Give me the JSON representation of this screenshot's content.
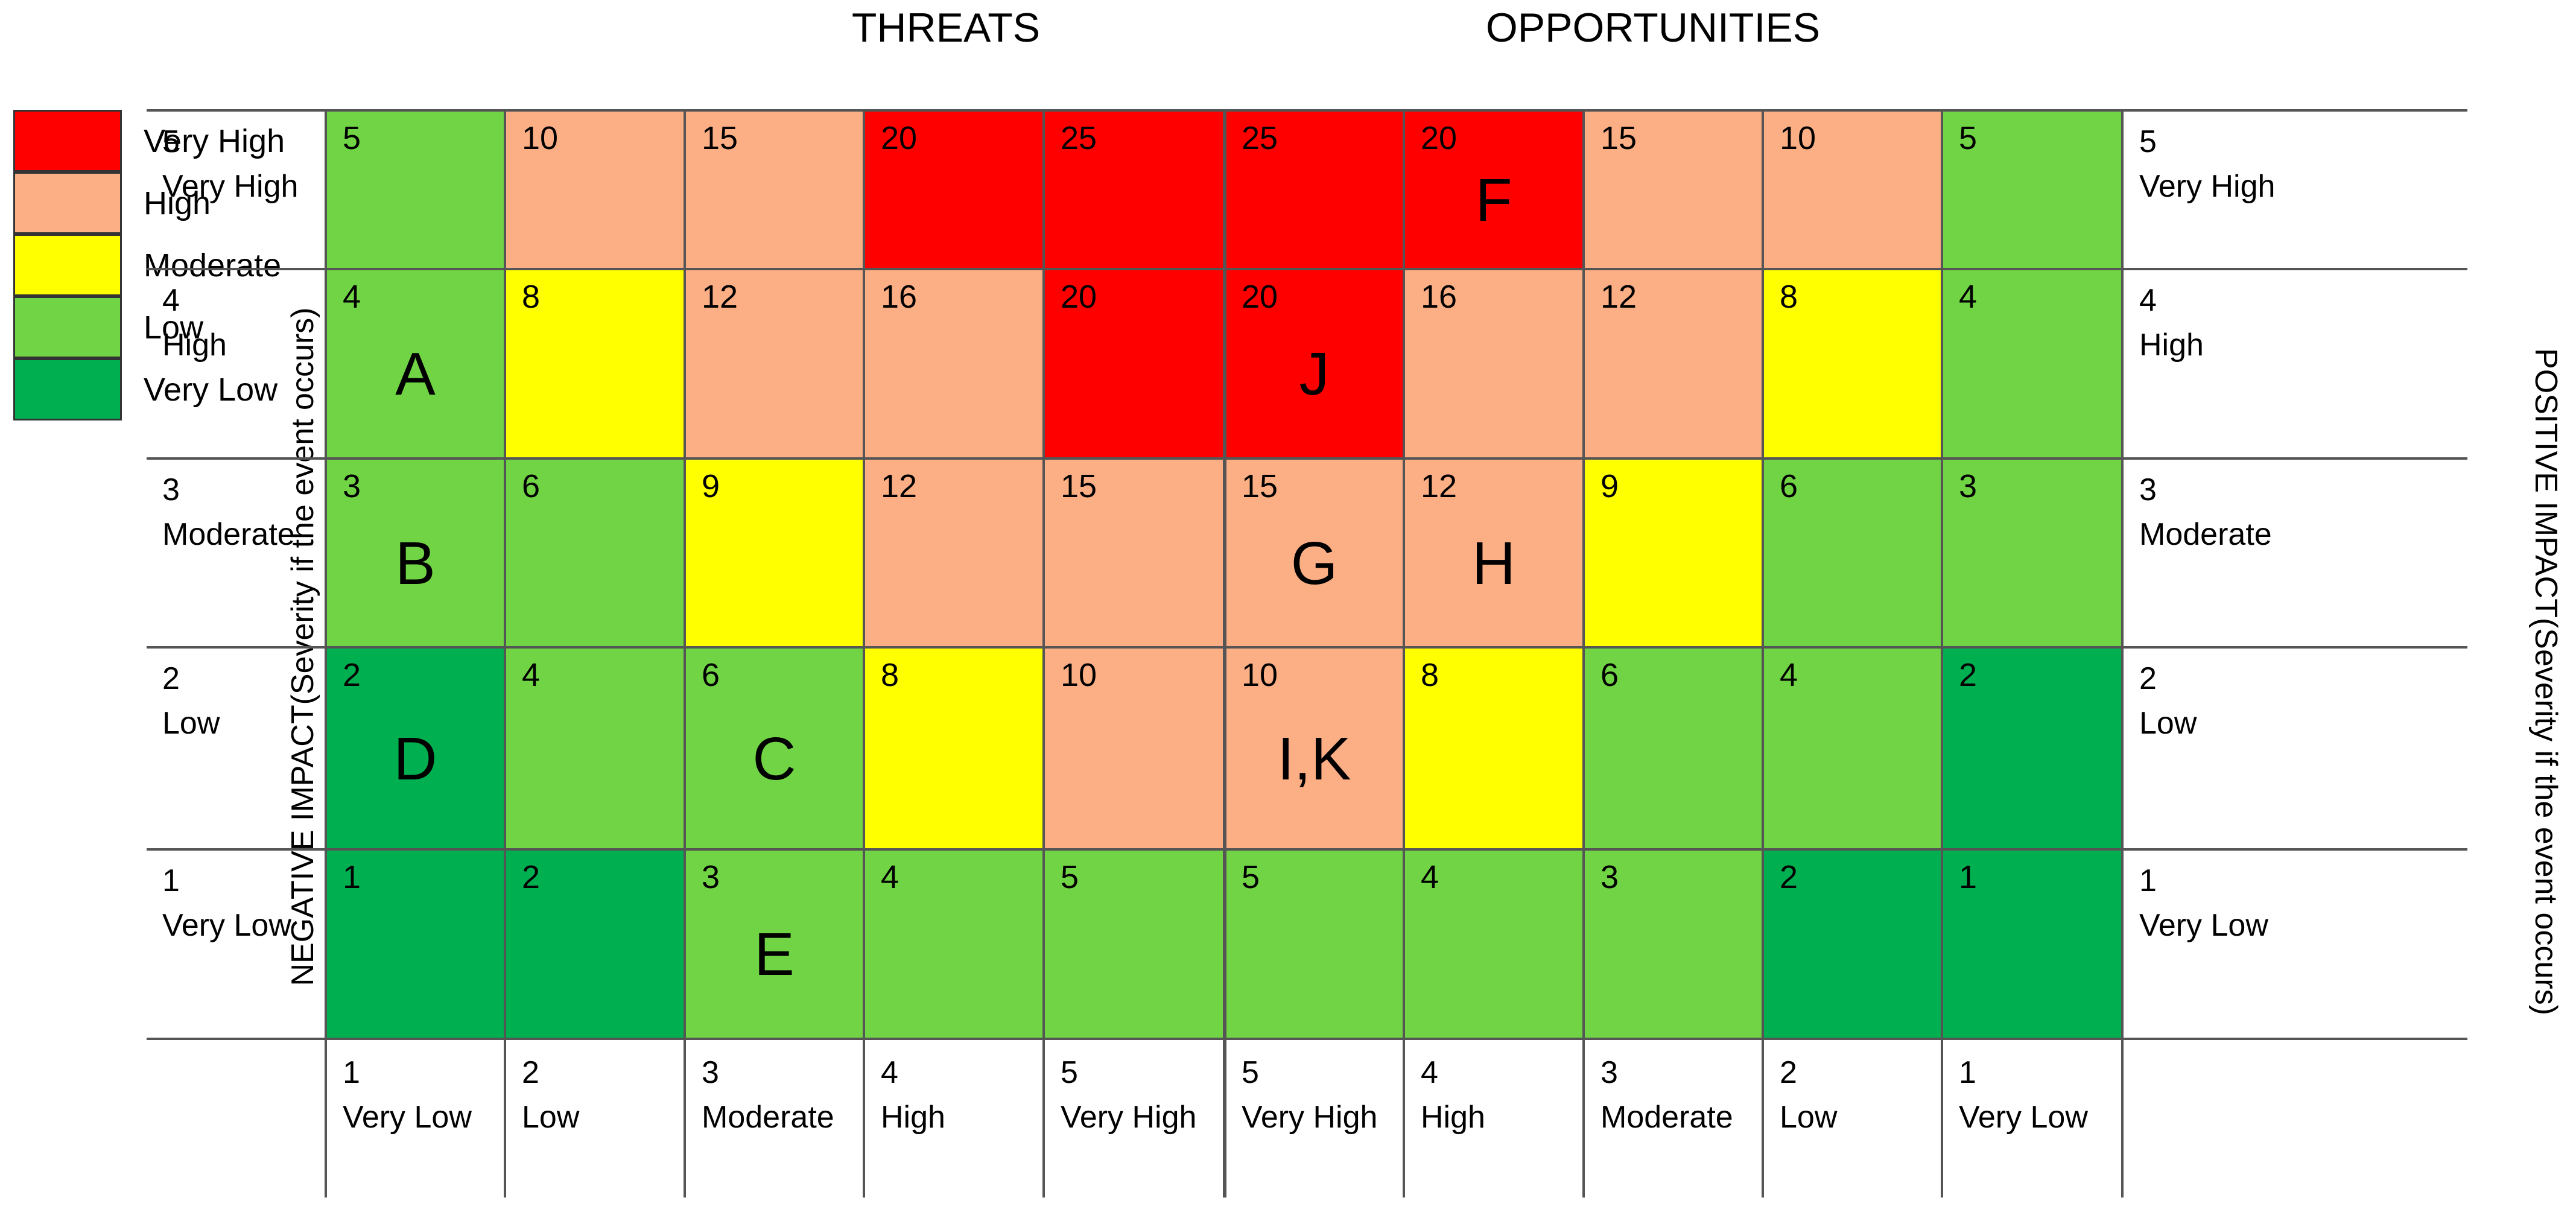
{
  "headers": {
    "threats": "THREATS",
    "opportunities": "OPPORTUNITIES"
  },
  "legend": [
    {
      "label": "Very High",
      "color": "#ff0000"
    },
    {
      "label": "High",
      "color": "#fcae85"
    },
    {
      "label": "Moderate",
      "color": "#ffff00"
    },
    {
      "label": "Low",
      "color": "#70d444"
    },
    {
      "label": "Very Low",
      "color": "#00b050"
    }
  ],
  "axes": {
    "left": "NEGATIVE  IMPACT(Severity if the event occurs)",
    "right": "POSITIVE  IMPACT(Severity if the event occurs)"
  },
  "row_labels": [
    {
      "num": "5",
      "text": "Very High"
    },
    {
      "num": "4",
      "text": "High"
    },
    {
      "num": "3",
      "text": "Moderate"
    },
    {
      "num": "2",
      "text": "Low"
    },
    {
      "num": "1",
      "text": "Very Low"
    }
  ],
  "col_labels": [
    {
      "num": "1",
      "text": "Very Low"
    },
    {
      "num": "2",
      "text": "Low"
    },
    {
      "num": "3",
      "text": "Moderate"
    },
    {
      "num": "4",
      "text": "High"
    },
    {
      "num": "5",
      "text": "Very High"
    },
    {
      "num": "5",
      "text": "Very High"
    },
    {
      "num": "4",
      "text": "High"
    },
    {
      "num": "3",
      "text": "Moderate"
    },
    {
      "num": "2",
      "text": "Low"
    },
    {
      "num": "1",
      "text": "Very Low"
    }
  ],
  "grid": [
    [
      {
        "score": "5",
        "level": "Low",
        "risk": ""
      },
      {
        "score": "10",
        "level": "High",
        "risk": ""
      },
      {
        "score": "15",
        "level": "High",
        "risk": ""
      },
      {
        "score": "20",
        "level": "Very High",
        "risk": ""
      },
      {
        "score": "25",
        "level": "Very High",
        "risk": ""
      },
      {
        "score": "25",
        "level": "Very High",
        "risk": ""
      },
      {
        "score": "20",
        "level": "Very High",
        "risk": "F"
      },
      {
        "score": "15",
        "level": "High",
        "risk": ""
      },
      {
        "score": "10",
        "level": "High",
        "risk": ""
      },
      {
        "score": "5",
        "level": "Low",
        "risk": ""
      }
    ],
    [
      {
        "score": "4",
        "level": "Low",
        "risk": "A"
      },
      {
        "score": "8",
        "level": "Moderate",
        "risk": ""
      },
      {
        "score": "12",
        "level": "High",
        "risk": ""
      },
      {
        "score": "16",
        "level": "High",
        "risk": ""
      },
      {
        "score": "20",
        "level": "Very High",
        "risk": ""
      },
      {
        "score": "20",
        "level": "Very High",
        "risk": "J"
      },
      {
        "score": "16",
        "level": "High",
        "risk": ""
      },
      {
        "score": "12",
        "level": "High",
        "risk": ""
      },
      {
        "score": "8",
        "level": "Moderate",
        "risk": ""
      },
      {
        "score": "4",
        "level": "Low",
        "risk": ""
      }
    ],
    [
      {
        "score": "3",
        "level": "Low",
        "risk": "B"
      },
      {
        "score": "6",
        "level": "Low",
        "risk": ""
      },
      {
        "score": "9",
        "level": "Moderate",
        "risk": ""
      },
      {
        "score": "12",
        "level": "High",
        "risk": ""
      },
      {
        "score": "15",
        "level": "High",
        "risk": ""
      },
      {
        "score": "15",
        "level": "High",
        "risk": "G"
      },
      {
        "score": "12",
        "level": "High",
        "risk": "H"
      },
      {
        "score": "9",
        "level": "Moderate",
        "risk": ""
      },
      {
        "score": "6",
        "level": "Low",
        "risk": ""
      },
      {
        "score": "3",
        "level": "Low",
        "risk": ""
      }
    ],
    [
      {
        "score": "2",
        "level": "Very Low",
        "risk": "D"
      },
      {
        "score": "4",
        "level": "Low",
        "risk": ""
      },
      {
        "score": "6",
        "level": "Low",
        "risk": "C"
      },
      {
        "score": "8",
        "level": "Moderate",
        "risk": ""
      },
      {
        "score": "10",
        "level": "High",
        "risk": ""
      },
      {
        "score": "10",
        "level": "High",
        "risk": "I,K"
      },
      {
        "score": "8",
        "level": "Moderate",
        "risk": ""
      },
      {
        "score": "6",
        "level": "Low",
        "risk": ""
      },
      {
        "score": "4",
        "level": "Low",
        "risk": ""
      },
      {
        "score": "2",
        "level": "Very Low",
        "risk": ""
      }
    ],
    [
      {
        "score": "1",
        "level": "Very Low",
        "risk": ""
      },
      {
        "score": "2",
        "level": "Very Low",
        "risk": ""
      },
      {
        "score": "3",
        "level": "Low",
        "risk": "E"
      },
      {
        "score": "4",
        "level": "Low",
        "risk": ""
      },
      {
        "score": "5",
        "level": "Low",
        "risk": ""
      },
      {
        "score": "5",
        "level": "Low",
        "risk": ""
      },
      {
        "score": "4",
        "level": "Low",
        "risk": ""
      },
      {
        "score": "3",
        "level": "Low",
        "risk": ""
      },
      {
        "score": "2",
        "level": "Very Low",
        "risk": ""
      },
      {
        "score": "1",
        "level": "Very Low",
        "risk": ""
      }
    ]
  ]
}
